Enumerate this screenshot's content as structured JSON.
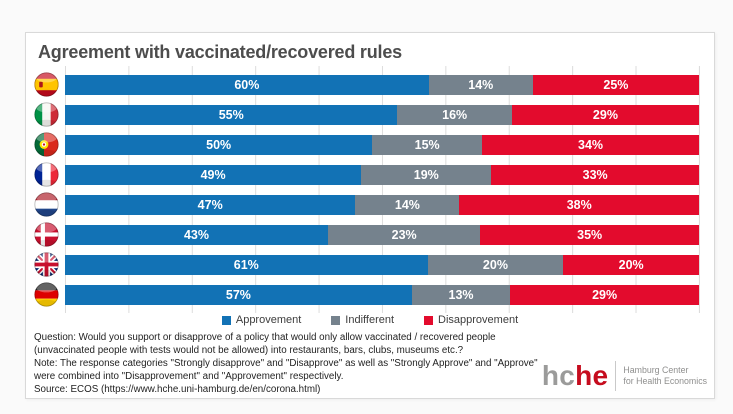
{
  "title": "Agreement with vaccinated/recovered rules",
  "chart_data": {
    "type": "bar",
    "stacked": true,
    "orientation": "horizontal",
    "title": "Agreement with vaccinated/recovered rules",
    "categories": [
      "Spain",
      "Italy",
      "Portugal",
      "France",
      "Netherlands",
      "Denmark",
      "United Kingdom",
      "Germany"
    ],
    "flag_icons": [
      "es",
      "it",
      "pt",
      "fr",
      "nl",
      "dk",
      "gb",
      "de"
    ],
    "series": [
      {
        "name": "Approvement",
        "color": "#1272B5",
        "values": [
          60,
          55,
          50,
          49,
          47,
          43,
          61,
          57
        ]
      },
      {
        "name": "Indifferent",
        "color": "#75828D",
        "values": [
          14,
          16,
          15,
          19,
          14,
          23,
          20,
          13
        ]
      },
      {
        "name": "Disapprovement",
        "color": "#E30B2D",
        "values": [
          25,
          29,
          34,
          33,
          38,
          35,
          20,
          29
        ]
      }
    ],
    "value_suffix": "%",
    "xlim": [
      0,
      100
    ],
    "gridline_step_percent": 10,
    "grid": "vertical light-gray lines every 10%",
    "legend_position": "bottom-center"
  },
  "footer": {
    "question": "Question: Would you support or disapprove of a policy that would only allow vaccinated / recovered people (unvaccinated people with tests would not be allowed) into restaurants, bars, clubs, museums etc.?",
    "note": "Note: The response categories \"Strongly disapprove\" and \"Disapprove\" as well as \"Strongly Approve\" and \"Approve\" were combined into \"Disapprovement\" and \"Approvement\" respectively.",
    "source": "Source: ECOS (https://www.hche.uni-hamburg.de/en/corona.html)"
  },
  "logo": {
    "text_gray": "hc",
    "text_red": "he",
    "tagline_line1": "Hamburg Center",
    "tagline_line2": "for Health Economics"
  }
}
